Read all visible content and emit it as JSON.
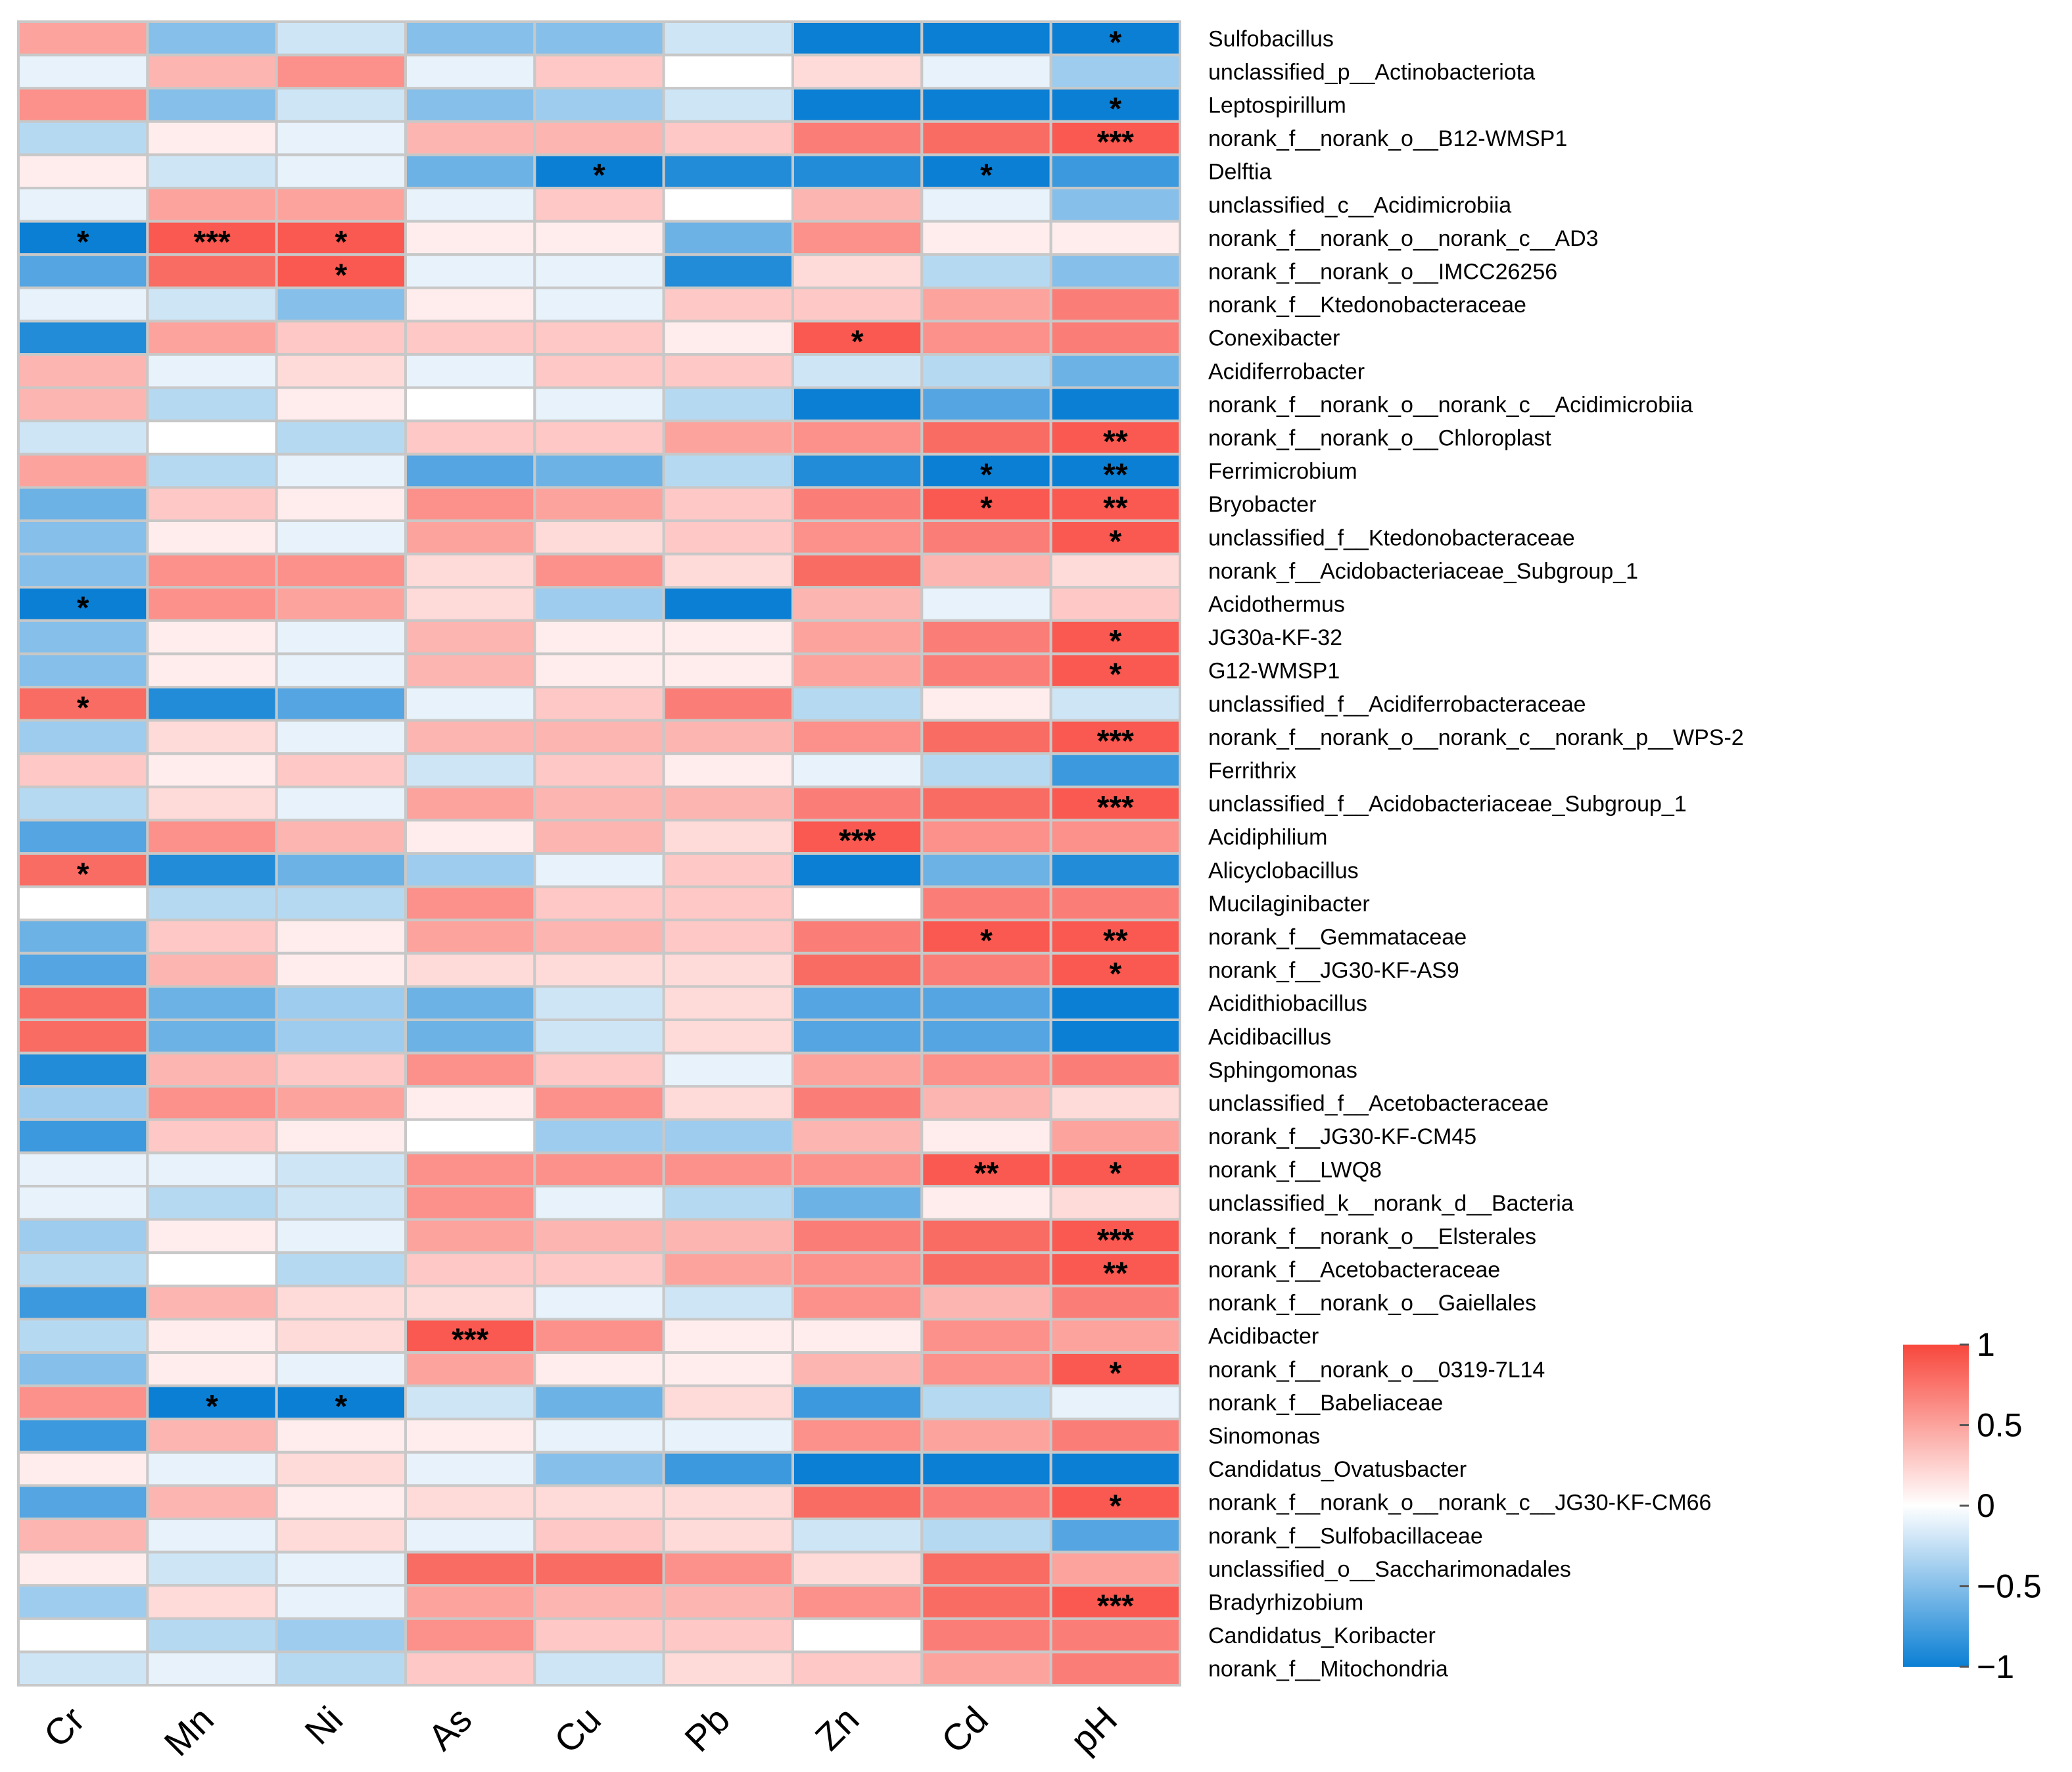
{
  "chart_data": {
    "type": "heatmap",
    "title": "",
    "xlabel": "",
    "ylabel": "",
    "columns": [
      "Cr",
      "Mn",
      "Ni",
      "As",
      "Cu",
      "Pb",
      "Zn",
      "Cd",
      "pH"
    ],
    "rows": [
      "Sulfobacillus",
      "unclassified_p__Actinobacteriota",
      "Leptospirillum",
      "norank_f__norank_o__B12-WMSP1",
      "Delftia",
      "unclassified_c__Acidimicrobiia",
      "norank_f__norank_o__norank_c__AD3",
      "norank_f__norank_o__IMCC26256",
      "norank_f__Ktedonobacteraceae",
      "Conexibacter",
      "Acidiferrobacter",
      "norank_f__norank_o__norank_c__Acidimicrobiia",
      "norank_f__norank_o__Chloroplast",
      "Ferrimicrobium",
      "Bryobacter",
      "unclassified_f__Ktedonobacteraceae",
      "norank_f__Acidobacteriaceae_Subgroup_1",
      "Acidothermus",
      "JG30a-KF-32",
      "G12-WMSP1",
      "unclassified_f__Acidiferrobacteraceae",
      "norank_f__norank_o__norank_c__norank_p__WPS-2",
      "Ferrithrix",
      "unclassified_f__Acidobacteriaceae_Subgroup_1",
      "Acidiphilium",
      "Alicyclobacillus",
      "Mucilaginibacter",
      "norank_f__Gemmataceae",
      "norank_f__JG30-KF-AS9",
      "Acidithiobacillus",
      "Acidibacillus",
      "Sphingomonas",
      "unclassified_f__Acetobacteraceae",
      "norank_f__JG30-KF-CM45",
      "norank_f__LWQ8",
      "unclassified_k__norank_d__Bacteria",
      "norank_f__norank_o__Elsterales",
      "norank_f__Acetobacteraceae",
      "norank_f__norank_o__Gaiellales",
      "Acidibacter",
      "norank_f__norank_o__0319-7L14",
      "norank_f__Babeliaceae",
      "Sinomonas",
      "Candidatus_Ovatusbacter",
      "norank_f__norank_o__norank_c__JG30-KF-CM66",
      "norank_f__Sulfobacillaceae",
      "unclassified_o__Saccharimonadales",
      "Bradyrhizobium",
      "Candidatus_Koribacter",
      "norank_f__Mitochondria"
    ],
    "values": [
      [
        0.5,
        -0.5,
        -0.2,
        -0.5,
        -0.5,
        -0.2,
        -1.0,
        -1.0,
        -1.0
      ],
      [
        -0.1,
        0.4,
        0.6,
        -0.1,
        0.3,
        0.0,
        0.2,
        -0.1,
        -0.4
      ],
      [
        0.6,
        -0.5,
        -0.2,
        -0.5,
        -0.4,
        -0.2,
        -1.0,
        -1.0,
        -1.0
      ],
      [
        -0.3,
        0.1,
        -0.1,
        0.4,
        0.4,
        0.3,
        0.7,
        0.8,
        0.9
      ],
      [
        0.1,
        -0.2,
        -0.1,
        -0.6,
        -1.0,
        -0.9,
        -0.9,
        -1.0,
        -0.8
      ],
      [
        -0.1,
        0.5,
        0.5,
        -0.1,
        0.3,
        0.0,
        0.4,
        -0.1,
        -0.5
      ],
      [
        -1.0,
        0.9,
        0.9,
        0.1,
        0.1,
        -0.6,
        0.6,
        0.1,
        0.1
      ],
      [
        -0.7,
        0.8,
        0.9,
        -0.1,
        -0.1,
        -0.9,
        0.2,
        -0.3,
        -0.5
      ],
      [
        -0.1,
        -0.2,
        -0.5,
        0.1,
        -0.1,
        0.3,
        0.3,
        0.5,
        0.7
      ],
      [
        -0.9,
        0.5,
        0.3,
        0.3,
        0.3,
        0.1,
        0.9,
        0.6,
        0.7
      ],
      [
        0.4,
        -0.1,
        0.2,
        -0.1,
        0.3,
        0.3,
        -0.2,
        -0.3,
        -0.6
      ],
      [
        0.4,
        -0.3,
        0.1,
        0.0,
        -0.1,
        -0.3,
        -1.0,
        -0.7,
        -1.0
      ],
      [
        -0.2,
        0.0,
        -0.3,
        0.3,
        0.3,
        0.5,
        0.6,
        0.8,
        0.9
      ],
      [
        0.5,
        -0.3,
        -0.1,
        -0.7,
        -0.6,
        -0.3,
        -0.9,
        -1.0,
        -1.0
      ],
      [
        -0.6,
        0.3,
        0.1,
        0.6,
        0.5,
        0.3,
        0.7,
        0.9,
        0.9
      ],
      [
        -0.5,
        0.1,
        -0.1,
        0.5,
        0.2,
        0.3,
        0.6,
        0.7,
        0.9
      ],
      [
        -0.5,
        0.6,
        0.6,
        0.2,
        0.6,
        0.2,
        0.8,
        0.4,
        0.2
      ],
      [
        -1.0,
        0.6,
        0.5,
        0.2,
        -0.4,
        -1.0,
        0.4,
        -0.1,
        0.3
      ],
      [
        -0.5,
        0.1,
        -0.1,
        0.4,
        0.1,
        0.1,
        0.5,
        0.7,
        0.9
      ],
      [
        -0.5,
        0.1,
        -0.1,
        0.4,
        0.1,
        0.1,
        0.5,
        0.7,
        0.9
      ],
      [
        0.8,
        -0.9,
        -0.7,
        -0.1,
        0.3,
        0.7,
        -0.3,
        0.1,
        -0.2
      ],
      [
        -0.4,
        0.2,
        -0.1,
        0.4,
        0.4,
        0.4,
        0.6,
        0.8,
        0.9
      ],
      [
        0.3,
        0.1,
        0.3,
        -0.2,
        0.3,
        0.1,
        -0.1,
        -0.3,
        -0.8
      ],
      [
        -0.3,
        0.2,
        -0.1,
        0.5,
        0.4,
        0.4,
        0.7,
        0.8,
        0.9
      ],
      [
        -0.7,
        0.6,
        0.4,
        0.1,
        0.4,
        0.2,
        0.9,
        0.6,
        0.6
      ],
      [
        0.8,
        -0.9,
        -0.6,
        -0.4,
        -0.1,
        0.3,
        -1.0,
        -0.6,
        -0.9
      ],
      [
        0.0,
        -0.3,
        -0.3,
        0.6,
        0.3,
        0.3,
        0.0,
        0.7,
        0.7
      ],
      [
        -0.6,
        0.3,
        0.1,
        0.5,
        0.4,
        0.3,
        0.7,
        0.9,
        0.9
      ],
      [
        -0.7,
        0.4,
        0.1,
        0.2,
        0.2,
        0.2,
        0.8,
        0.7,
        0.9
      ],
      [
        0.8,
        -0.6,
        -0.4,
        -0.6,
        -0.2,
        0.2,
        -0.7,
        -0.7,
        -1.0
      ],
      [
        0.8,
        -0.6,
        -0.4,
        -0.6,
        -0.2,
        0.2,
        -0.7,
        -0.7,
        -1.0
      ],
      [
        -0.9,
        0.4,
        0.3,
        0.6,
        0.3,
        -0.1,
        0.5,
        0.6,
        0.7
      ],
      [
        -0.4,
        0.6,
        0.5,
        0.1,
        0.6,
        0.2,
        0.7,
        0.4,
        0.2
      ],
      [
        -0.8,
        0.3,
        0.1,
        0.0,
        -0.4,
        -0.4,
        0.4,
        0.1,
        0.5
      ],
      [
        -0.1,
        -0.1,
        -0.2,
        0.6,
        0.6,
        0.6,
        0.6,
        0.9,
        0.9
      ],
      [
        -0.1,
        -0.3,
        -0.2,
        0.6,
        -0.1,
        -0.3,
        -0.6,
        0.1,
        0.2
      ],
      [
        -0.4,
        0.1,
        -0.1,
        0.5,
        0.4,
        0.4,
        0.7,
        0.8,
        0.9
      ],
      [
        -0.3,
        0.0,
        -0.3,
        0.3,
        0.3,
        0.5,
        0.6,
        0.8,
        0.9
      ],
      [
        -0.8,
        0.4,
        0.2,
        0.2,
        -0.1,
        -0.2,
        0.6,
        0.4,
        0.7
      ],
      [
        -0.3,
        0.1,
        0.2,
        0.9,
        0.6,
        0.1,
        0.1,
        0.6,
        0.5
      ],
      [
        -0.5,
        0.1,
        -0.1,
        0.5,
        0.1,
        0.1,
        0.4,
        0.6,
        0.9
      ],
      [
        0.6,
        -1.0,
        -1.0,
        -0.2,
        -0.6,
        0.2,
        -0.8,
        -0.3,
        -0.1
      ],
      [
        -0.8,
        0.4,
        0.1,
        0.1,
        -0.1,
        -0.1,
        0.6,
        0.5,
        0.7
      ],
      [
        0.1,
        -0.1,
        0.2,
        -0.1,
        -0.5,
        -0.8,
        -1.0,
        -1.0,
        -1.0
      ],
      [
        -0.7,
        0.4,
        0.1,
        0.2,
        0.2,
        0.2,
        0.8,
        0.7,
        0.9
      ],
      [
        0.4,
        -0.1,
        0.2,
        -0.1,
        0.3,
        0.2,
        -0.2,
        -0.3,
        -0.7
      ],
      [
        0.1,
        -0.2,
        -0.1,
        0.8,
        0.8,
        0.6,
        0.2,
        0.8,
        0.5
      ],
      [
        -0.4,
        0.2,
        -0.1,
        0.5,
        0.4,
        0.4,
        0.6,
        0.8,
        0.9
      ],
      [
        0.0,
        -0.3,
        -0.4,
        0.6,
        0.3,
        0.3,
        0.0,
        0.7,
        0.7
      ],
      [
        -0.2,
        -0.1,
        -0.3,
        0.3,
        -0.2,
        0.2,
        0.3,
        0.5,
        0.7
      ]
    ],
    "significance": [
      {
        "row": 0,
        "col": 8,
        "mark": "*"
      },
      {
        "row": 2,
        "col": 8,
        "mark": "*"
      },
      {
        "row": 3,
        "col": 8,
        "mark": "***"
      },
      {
        "row": 4,
        "col": 4,
        "mark": "*"
      },
      {
        "row": 4,
        "col": 7,
        "mark": "*"
      },
      {
        "row": 6,
        "col": 0,
        "mark": "*"
      },
      {
        "row": 6,
        "col": 1,
        "mark": "***"
      },
      {
        "row": 6,
        "col": 2,
        "mark": "*"
      },
      {
        "row": 7,
        "col": 2,
        "mark": "*"
      },
      {
        "row": 9,
        "col": 6,
        "mark": "*"
      },
      {
        "row": 12,
        "col": 8,
        "mark": "**"
      },
      {
        "row": 13,
        "col": 7,
        "mark": "*"
      },
      {
        "row": 13,
        "col": 8,
        "mark": "**"
      },
      {
        "row": 14,
        "col": 7,
        "mark": "*"
      },
      {
        "row": 14,
        "col": 8,
        "mark": "**"
      },
      {
        "row": 15,
        "col": 8,
        "mark": "*"
      },
      {
        "row": 17,
        "col": 0,
        "mark": "*"
      },
      {
        "row": 18,
        "col": 8,
        "mark": "*"
      },
      {
        "row": 19,
        "col": 8,
        "mark": "*"
      },
      {
        "row": 20,
        "col": 0,
        "mark": "*"
      },
      {
        "row": 21,
        "col": 8,
        "mark": "***"
      },
      {
        "row": 23,
        "col": 8,
        "mark": "***"
      },
      {
        "row": 24,
        "col": 6,
        "mark": "***"
      },
      {
        "row": 25,
        "col": 0,
        "mark": "*"
      },
      {
        "row": 27,
        "col": 7,
        "mark": "*"
      },
      {
        "row": 27,
        "col": 8,
        "mark": "**"
      },
      {
        "row": 28,
        "col": 8,
        "mark": "*"
      },
      {
        "row": 34,
        "col": 7,
        "mark": "**"
      },
      {
        "row": 34,
        "col": 8,
        "mark": "*"
      },
      {
        "row": 36,
        "col": 8,
        "mark": "***"
      },
      {
        "row": 37,
        "col": 8,
        "mark": "**"
      },
      {
        "row": 39,
        "col": 3,
        "mark": "***"
      },
      {
        "row": 40,
        "col": 8,
        "mark": "*"
      },
      {
        "row": 41,
        "col": 1,
        "mark": "*"
      },
      {
        "row": 41,
        "col": 2,
        "mark": "*"
      },
      {
        "row": 44,
        "col": 8,
        "mark": "*"
      },
      {
        "row": 47,
        "col": 8,
        "mark": "***"
      }
    ],
    "color_scale": {
      "min": -1,
      "max": 1,
      "low_color": "#0b7fd4",
      "mid_color": "#ffffff",
      "high_color": "#f8473c",
      "grid_color": "#c8c8c8",
      "ticks": [
        1,
        0.5,
        0,
        -0.5,
        -1
      ],
      "tick_labels": [
        "1",
        "0.5",
        "0",
        "−0.5",
        "−1"
      ]
    },
    "legend_position": "bottom-right"
  }
}
